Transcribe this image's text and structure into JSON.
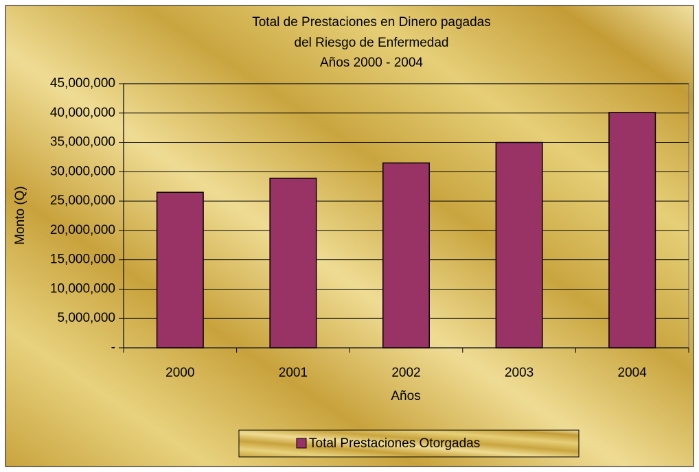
{
  "chart_data": {
    "type": "bar",
    "title": [
      "Total de Prestaciones  en Dinero pagadas",
      "del Riesgo de Enfermedad",
      "Años 2000 - 2004"
    ],
    "x_label": "Años",
    "y_label": "Monto (Q)",
    "categories": [
      "2000",
      "2001",
      "2002",
      "2003",
      "2004"
    ],
    "series": [
      {
        "name": "Total Prestaciones Otorgadas",
        "color": "#993366",
        "values": [
          26500000,
          28900000,
          31500000,
          35000000,
          40100000
        ]
      }
    ],
    "ylim": [
      0,
      45000000
    ],
    "yticks": [
      {
        "value": 0,
        "label": "-"
      },
      {
        "value": 5000000,
        "label": "5,000,000"
      },
      {
        "value": 10000000,
        "label": "10,000,000"
      },
      {
        "value": 15000000,
        "label": "15,000,000"
      },
      {
        "value": 20000000,
        "label": "20,000,000"
      },
      {
        "value": 25000000,
        "label": "25,000,000"
      },
      {
        "value": 30000000,
        "label": "30,000,000"
      },
      {
        "value": 35000000,
        "label": "35,000,000"
      },
      {
        "value": 40000000,
        "label": "40,000,000"
      },
      {
        "value": 45000000,
        "label": "45,000,000"
      }
    ],
    "grid": true,
    "legend": "bottom"
  }
}
